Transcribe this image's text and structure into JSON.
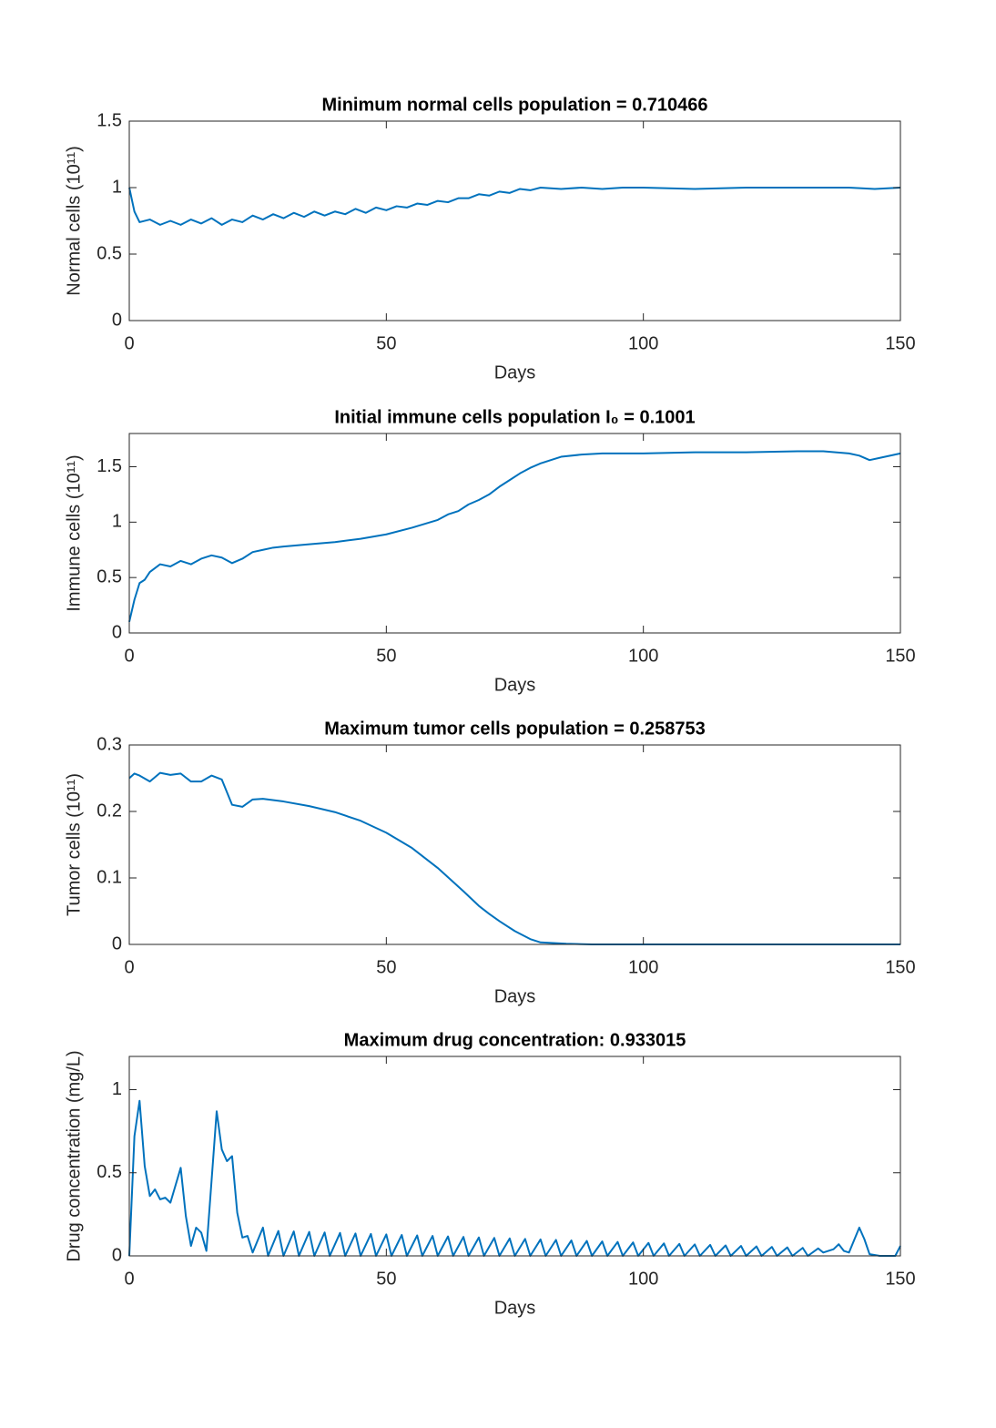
{
  "chart_data": [
    {
      "type": "line",
      "title": "Minimum normal cells population = 0.710466",
      "xlabel": "Days",
      "ylabel": "Normal cells (10¹¹)",
      "color": "#0072bd",
      "x": [
        0,
        1,
        2,
        4,
        6,
        8,
        10,
        12,
        14,
        16,
        18,
        20,
        22,
        24,
        26,
        28,
        30,
        32,
        34,
        36,
        38,
        40,
        42,
        44,
        46,
        48,
        50,
        52,
        54,
        56,
        58,
        60,
        62,
        64,
        66,
        68,
        70,
        72,
        74,
        76,
        78,
        80,
        84,
        88,
        92,
        96,
        100,
        110,
        120,
        130,
        140,
        145,
        150
      ],
      "values": [
        1.0,
        0.82,
        0.74,
        0.76,
        0.72,
        0.75,
        0.72,
        0.76,
        0.73,
        0.77,
        0.72,
        0.76,
        0.74,
        0.79,
        0.76,
        0.8,
        0.77,
        0.81,
        0.78,
        0.82,
        0.79,
        0.82,
        0.8,
        0.84,
        0.81,
        0.85,
        0.83,
        0.86,
        0.85,
        0.88,
        0.87,
        0.9,
        0.89,
        0.92,
        0.92,
        0.95,
        0.94,
        0.97,
        0.96,
        0.99,
        0.98,
        1.0,
        0.99,
        1.0,
        0.99,
        1.0,
        1.0,
        0.99,
        1.0,
        1.0,
        1.0,
        0.99,
        1.0
      ],
      "xlim": [
        0,
        150
      ],
      "xticks": [
        0,
        50,
        100,
        150
      ],
      "ylim": [
        0,
        1.5
      ],
      "yticks": [
        0,
        0.5,
        1,
        1.5
      ],
      "grid": false
    },
    {
      "type": "line",
      "title": "Initial immune cells population I₀ = 0.1001",
      "xlabel": "Days",
      "ylabel": "Immune cells (10¹¹)",
      "color": "#0072bd",
      "x": [
        0,
        1,
        2,
        3,
        4,
        6,
        8,
        10,
        12,
        14,
        16,
        18,
        20,
        22,
        24,
        26,
        28,
        30,
        35,
        40,
        45,
        50,
        55,
        60,
        62,
        64,
        66,
        68,
        70,
        72,
        74,
        76,
        78,
        80,
        82,
        84,
        88,
        92,
        100,
        110,
        120,
        130,
        135,
        140,
        142,
        144,
        146,
        150
      ],
      "values": [
        0.1,
        0.3,
        0.45,
        0.48,
        0.55,
        0.62,
        0.6,
        0.65,
        0.62,
        0.67,
        0.7,
        0.68,
        0.63,
        0.67,
        0.73,
        0.75,
        0.77,
        0.78,
        0.8,
        0.82,
        0.85,
        0.89,
        0.95,
        1.02,
        1.07,
        1.1,
        1.16,
        1.2,
        1.25,
        1.32,
        1.38,
        1.44,
        1.49,
        1.53,
        1.56,
        1.59,
        1.61,
        1.62,
        1.62,
        1.63,
        1.63,
        1.64,
        1.64,
        1.62,
        1.6,
        1.56,
        1.58,
        1.62
      ],
      "xlim": [
        0,
        150
      ],
      "xticks": [
        0,
        50,
        100,
        150
      ],
      "ylim": [
        0,
        1.8
      ],
      "yticks": [
        0,
        0.5,
        1,
        1.5
      ],
      "grid": false
    },
    {
      "type": "line",
      "title": "Maximum tumor cells population = 0.258753",
      "xlabel": "Days",
      "ylabel": "Tumor cells (10¹¹)",
      "color": "#0072bd",
      "x": [
        0,
        1,
        2,
        4,
        6,
        8,
        10,
        12,
        14,
        16,
        18,
        20,
        22,
        24,
        26,
        30,
        35,
        40,
        45,
        50,
        55,
        60,
        65,
        68,
        70,
        72,
        75,
        78,
        80,
        85,
        90,
        100,
        120,
        150
      ],
      "values": [
        0.25,
        0.257,
        0.254,
        0.245,
        0.258,
        0.255,
        0.257,
        0.245,
        0.245,
        0.254,
        0.248,
        0.21,
        0.207,
        0.218,
        0.219,
        0.215,
        0.208,
        0.199,
        0.186,
        0.168,
        0.145,
        0.115,
        0.08,
        0.058,
        0.046,
        0.035,
        0.02,
        0.008,
        0.003,
        0.001,
        0,
        0,
        0,
        0
      ],
      "xlim": [
        0,
        150
      ],
      "xticks": [
        0,
        50,
        100,
        150
      ],
      "ylim": [
        0,
        0.3
      ],
      "yticks": [
        0,
        0.1,
        0.2,
        0.3
      ],
      "grid": false
    },
    {
      "type": "line",
      "title": "Maximum drug concentration: 0.933015",
      "xlabel": "Days",
      "ylabel": "Drug concentration (mg/L)",
      "color": "#0072bd",
      "x": [
        0,
        1,
        2,
        3,
        4,
        5,
        6,
        7,
        8,
        10,
        11,
        12,
        13,
        14,
        15,
        17,
        18,
        19,
        20,
        21,
        22,
        23,
        24,
        26,
        27,
        29,
        30,
        32,
        33,
        35,
        36,
        38,
        39,
        41,
        42,
        44,
        45,
        47,
        48,
        50,
        51,
        53,
        54,
        56,
        57,
        59,
        60,
        62,
        63,
        65,
        66,
        68,
        69,
        71,
        72,
        74,
        75,
        77,
        78,
        80,
        81,
        83,
        84,
        86,
        87,
        89,
        90,
        92,
        93,
        95,
        96,
        98,
        99,
        101,
        102,
        104,
        105,
        107,
        108,
        110,
        111,
        113,
        114,
        116,
        117,
        119,
        120,
        122,
        123,
        125,
        126,
        128,
        129,
        131,
        132,
        134,
        135,
        137,
        138,
        139,
        140,
        142,
        143,
        144,
        146,
        149,
        150
      ],
      "values": [
        0,
        0.72,
        0.933,
        0.54,
        0.36,
        0.4,
        0.34,
        0.35,
        0.32,
        0.53,
        0.24,
        0.06,
        0.17,
        0.14,
        0.03,
        0.87,
        0.64,
        0.57,
        0.6,
        0.26,
        0.11,
        0.12,
        0.02,
        0.17,
        0,
        0.15,
        0,
        0.147,
        0,
        0.144,
        0,
        0.141,
        0,
        0.138,
        0,
        0.135,
        0,
        0.132,
        0,
        0.129,
        0,
        0.126,
        0,
        0.123,
        0,
        0.12,
        0,
        0.117,
        0,
        0.114,
        0,
        0.111,
        0,
        0.108,
        0,
        0.105,
        0,
        0.102,
        0,
        0.099,
        0,
        0.096,
        0,
        0.093,
        0,
        0.09,
        0,
        0.087,
        0,
        0.084,
        0,
        0.081,
        0,
        0.078,
        0,
        0.075,
        0,
        0.072,
        0,
        0.069,
        0,
        0.066,
        0,
        0.063,
        0,
        0.06,
        0,
        0.057,
        0,
        0.054,
        0,
        0.051,
        0,
        0.048,
        0,
        0.045,
        0.02,
        0.04,
        0.07,
        0.03,
        0.02,
        0.17,
        0.1,
        0.01,
        0,
        0,
        0.06
      ],
      "xlim": [
        0,
        150
      ],
      "xticks": [
        0,
        50,
        100,
        150
      ],
      "ylim": [
        0,
        1.2
      ],
      "yticks": [
        0,
        0.5,
        1
      ],
      "grid": false
    }
  ]
}
